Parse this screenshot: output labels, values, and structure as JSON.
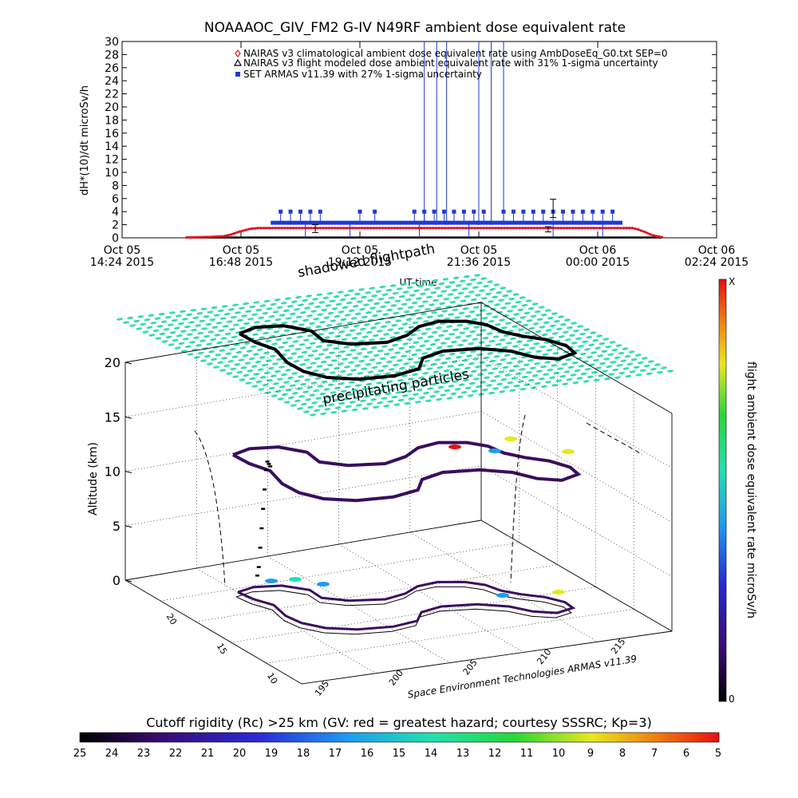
{
  "figure": {
    "title": "NOAAAOC_GIV_FM2 G-IV    N49RF   ambient dose equivalent rate"
  },
  "chart_data": [
    {
      "type": "line",
      "title": "NOAAAOC_GIV_FM2 G-IV    N49RF   ambient dose equivalent rate",
      "xlabel": "UT time",
      "ylabel": "dH*(10)/dt microSv/h",
      "ylim": [
        0,
        30
      ],
      "y_ticks": [
        0,
        2,
        4,
        6,
        8,
        10,
        12,
        14,
        16,
        18,
        20,
        22,
        24,
        26,
        28,
        30
      ],
      "x_tick_labels": [
        {
          "day": "Oct 05",
          "time": "14:24 2015"
        },
        {
          "day": "Oct 05",
          "time": "16:48 2015"
        },
        {
          "day": "Oct 05",
          "time": "19:12 2015"
        },
        {
          "day": "Oct 05",
          "time": "21:36 2015"
        },
        {
          "day": "Oct 06",
          "time": "00:00 2015"
        },
        {
          "day": "Oct 06",
          "time": "02:24 2015"
        }
      ],
      "x_hours": [
        0,
        2.4,
        4.8,
        7.2,
        9.6,
        12.0
      ],
      "legend_position": "top-right",
      "series": [
        {
          "name": "NAIRAS v3 climatological ambient dose equivalent rate using AmbDoseEq_G0.txt SEP=0",
          "color": "#e8141c",
          "marker": "diamond",
          "x": [
            1.3,
            1.8,
            2.05,
            2.2,
            2.35,
            2.5,
            2.6,
            2.7,
            2.75,
            10.3,
            10.4,
            10.55,
            10.7,
            10.9
          ],
          "y": [
            0.05,
            0.15,
            0.25,
            0.5,
            0.9,
            1.2,
            1.4,
            1.45,
            1.5,
            1.5,
            1.3,
            0.9,
            0.4,
            0.1
          ]
        },
        {
          "name": "NAIRAS v3 flight modeled dose ambient equivalent rate with 31% 1-sigma uncertainty",
          "color": "#000000",
          "marker": "triangle",
          "x": [
            1.3,
            3.0,
            5.0,
            7.0,
            9.0,
            10.9
          ],
          "y": [
            0.05,
            0.05,
            0.05,
            0.05,
            0.05,
            0.05
          ]
        },
        {
          "name": "SET ARMAS v11.39 with 27% 1-sigma uncertainty",
          "color": "#1e3ad6",
          "marker": "square",
          "baseline": 2.3,
          "x_start": 3.0,
          "x_end": 10.1,
          "spike_x": [
            3.2,
            3.4,
            3.6,
            3.8,
            4.0,
            4.8,
            5.1,
            5.9,
            6.1,
            6.3,
            6.5,
            6.7,
            6.9,
            7.1,
            7.3,
            7.7,
            7.9,
            8.1,
            8.3,
            8.5,
            8.7,
            8.9,
            9.1,
            9.3,
            9.5,
            9.7,
            9.9
          ],
          "spike_y": [
            4,
            4,
            4,
            4,
            4,
            4,
            4,
            4,
            4,
            4,
            4,
            4,
            4,
            4,
            4,
            4,
            4,
            4,
            4,
            4,
            4,
            4,
            4,
            4,
            4,
            4,
            4
          ],
          "extreme_x": [
            6.1,
            6.35,
            6.55,
            7.2,
            7.45,
            7.7
          ],
          "dip_x": [
            3.7,
            4.6,
            6.0,
            7.0,
            8.7,
            9.7
          ],
          "error_bars": [
            {
              "x": 3.9,
              "y": 1.4,
              "err": 0.6
            },
            {
              "x": 8.7,
              "y": 4.5,
              "err": 1.4
            },
            {
              "x": 8.6,
              "y": 1.3,
              "err": 0.4
            }
          ]
        }
      ]
    },
    {
      "type": "scatter",
      "subtype": "3d-flightpath",
      "xlabel": "Space Environment Technologies ARMAS v11.39",
      "ylabel": "",
      "zlabel": "Altitude (km)",
      "zlim": [
        0,
        20
      ],
      "z_ticks": [
        0,
        5,
        10,
        15,
        20
      ],
      "lon_ticks": [
        195,
        200,
        205,
        210,
        215
      ],
      "lat_ticks": [
        10,
        15,
        20
      ],
      "annotations": [
        "shadowed flightpath",
        "precipitating particles"
      ],
      "flight_altitude_km": [
        0,
        1,
        3,
        5,
        7,
        9,
        11,
        12,
        12,
        12,
        12,
        12,
        12,
        12,
        11,
        7,
        3,
        0
      ],
      "colorbar_vertical": {
        "label": "flight ambient dose equivalent rate microSv/h",
        "top_label": "X",
        "bottom_label": "0"
      },
      "colorbar_horizontal": {
        "label": "Cutoff rigidity (Rc) >25 km (GV: red = greatest hazard; courtesy SSSRC; Kp=3)",
        "tick_labels": [
          "25",
          "24",
          "23",
          "22",
          "21",
          "20",
          "19",
          "18",
          "17",
          "16",
          "15",
          "14",
          "13",
          "12",
          "11",
          "10",
          "9",
          "8",
          "7",
          "6",
          "5"
        ]
      }
    }
  ],
  "colors": {
    "armas_blue": "#1e3ad6",
    "nairas_red": "#e8141c",
    "particles_cyan": "#2fdcb0",
    "flight_purple": "#3a0d5e",
    "axis": "#000000"
  }
}
